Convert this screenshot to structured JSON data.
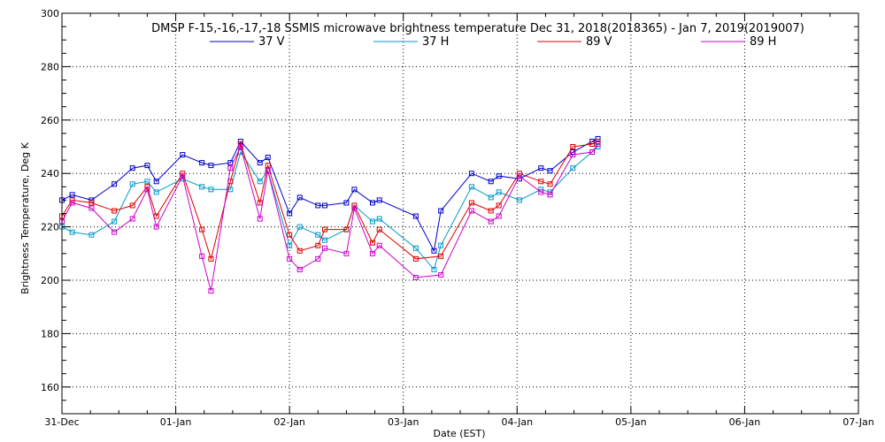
{
  "chart_data": {
    "type": "line",
    "title": "DMSP F-15,-16,-17,-18 SSMIS microwave brightness temperature Dec 31, 2018(2018365) - Jan  7, 2019(2019007)",
    "xlabel": "Date (EST)",
    "ylabel": "Brightness Temperature, Deg K",
    "ylim": [
      150,
      300
    ],
    "xlim": [
      0,
      7
    ],
    "x_tick_labels": [
      "31-Dec",
      "01-Jan",
      "02-Jan",
      "03-Jan",
      "04-Jan",
      "05-Jan",
      "06-Jan",
      "07-Jan"
    ],
    "y_tick_labels": [
      "160",
      "180",
      "200",
      "220",
      "240",
      "260",
      "280",
      "300"
    ],
    "grid": true,
    "legend_position": "top",
    "series": [
      {
        "name": "37 V",
        "color": "#0000cc",
        "x": [
          0.0,
          0.09,
          0.26,
          0.46,
          0.62,
          0.75,
          0.83,
          1.06,
          1.23,
          1.31,
          1.48,
          1.57,
          1.74,
          1.81,
          2.0,
          2.09,
          2.25,
          2.31,
          2.5,
          2.57,
          2.73,
          2.79,
          3.11,
          3.27,
          3.33,
          3.6,
          3.77,
          3.84,
          4.02,
          4.21,
          4.29,
          4.49,
          4.66,
          4.71
        ],
        "y": [
          230,
          232,
          230,
          236,
          242,
          243,
          237,
          247,
          244,
          243,
          244,
          252,
          244,
          246,
          225,
          231,
          228,
          228,
          229,
          234,
          229,
          230,
          224,
          211,
          226,
          240,
          237,
          239,
          238,
          242,
          241,
          248,
          252,
          253
        ]
      },
      {
        "name": "37 H",
        "color": "#0099cc",
        "x": [
          0.0,
          0.09,
          0.26,
          0.46,
          0.62,
          0.75,
          0.83,
          1.06,
          1.23,
          1.31,
          1.48,
          1.57,
          1.74,
          1.81,
          2.0,
          2.09,
          2.25,
          2.31,
          2.5,
          2.57,
          2.73,
          2.79,
          3.11,
          3.27,
          3.33,
          3.6,
          3.77,
          3.84,
          4.02,
          4.21,
          4.29,
          4.49,
          4.66,
          4.71
        ],
        "y": [
          220,
          218,
          217,
          222,
          236,
          237,
          233,
          238,
          235,
          234,
          234,
          248,
          237,
          241,
          213,
          220,
          217,
          215,
          219,
          228,
          222,
          223,
          212,
          204,
          213,
          235,
          231,
          233,
          230,
          234,
          233,
          242,
          248,
          250
        ]
      },
      {
        "name": "89 V",
        "color": "#dd0000",
        "x": [
          0.0,
          0.09,
          0.26,
          0.46,
          0.62,
          0.75,
          0.83,
          1.06,
          1.23,
          1.31,
          1.48,
          1.57,
          1.74,
          1.81,
          2.0,
          2.09,
          2.25,
          2.31,
          2.5,
          2.57,
          2.73,
          2.79,
          3.11,
          3.33,
          3.6,
          3.77,
          3.84,
          4.02,
          4.21,
          4.29,
          4.49,
          4.66,
          4.71
        ],
        "y": [
          224,
          230,
          229,
          226,
          228,
          235,
          224,
          240,
          219,
          208,
          237,
          251,
          229,
          243,
          217,
          211,
          213,
          219,
          219,
          228,
          214,
          219,
          208,
          209,
          229,
          226,
          228,
          240,
          237,
          236,
          250,
          251,
          252
        ]
      },
      {
        "name": "89 H",
        "color": "#cc00cc",
        "x": [
          0.0,
          0.09,
          0.26,
          0.46,
          0.62,
          0.75,
          0.83,
          1.06,
          1.23,
          1.31,
          1.48,
          1.57,
          1.74,
          1.81,
          2.0,
          2.09,
          2.25,
          2.31,
          2.5,
          2.57,
          2.73,
          2.79,
          3.11,
          3.33,
          3.6,
          3.77,
          3.84,
          4.02,
          4.21,
          4.29,
          4.49,
          4.66,
          4.71
        ],
        "y": [
          222,
          229,
          227,
          218,
          223,
          234,
          220,
          239,
          209,
          196,
          242,
          250,
          223,
          241,
          208,
          204,
          208,
          212,
          210,
          227,
          210,
          213,
          201,
          202,
          226,
          222,
          224,
          239,
          233,
          232,
          247,
          248,
          251
        ]
      }
    ]
  }
}
